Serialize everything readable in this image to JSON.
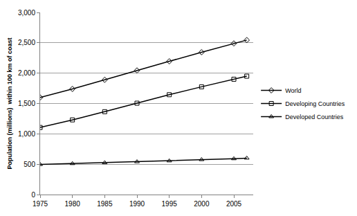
{
  "chart_data": {
    "type": "line",
    "y_label": "Population (millions)  within 100 km of coast",
    "x": [
      1975,
      1980,
      1985,
      1990,
      1995,
      2000,
      2005,
      2007
    ],
    "series": [
      {
        "name": "World",
        "color": "#000000",
        "marker": "diamond",
        "values": [
          1600,
          1740,
          1890,
          2045,
          2195,
          2345,
          2490,
          2545
        ]
      },
      {
        "name": "Developing Countries",
        "color": "#000000",
        "marker": "square",
        "values": [
          1105,
          1230,
          1365,
          1505,
          1645,
          1775,
          1900,
          1950
        ]
      },
      {
        "name": "Developed Countries",
        "color": "#000000",
        "marker": "triangle",
        "values": [
          495,
          510,
          525,
          540,
          555,
          575,
          590,
          600
        ]
      }
    ],
    "xlim": [
      1975,
      2008
    ],
    "xticks": [
      1975,
      1980,
      1985,
      1990,
      1995,
      2000,
      2005
    ],
    "ylim": [
      0,
      3000
    ],
    "yticks": [
      0,
      500,
      {
        "value": 1000,
        "label": "1,000"
      },
      {
        "value": 1500,
        "label": "1,500"
      },
      {
        "value": 2000,
        "label": "2,000"
      },
      {
        "value": 2500,
        "label": "2,500"
      },
      {
        "value": 3000,
        "label": "3,000"
      }
    ],
    "grid": true,
    "legend": "right"
  }
}
